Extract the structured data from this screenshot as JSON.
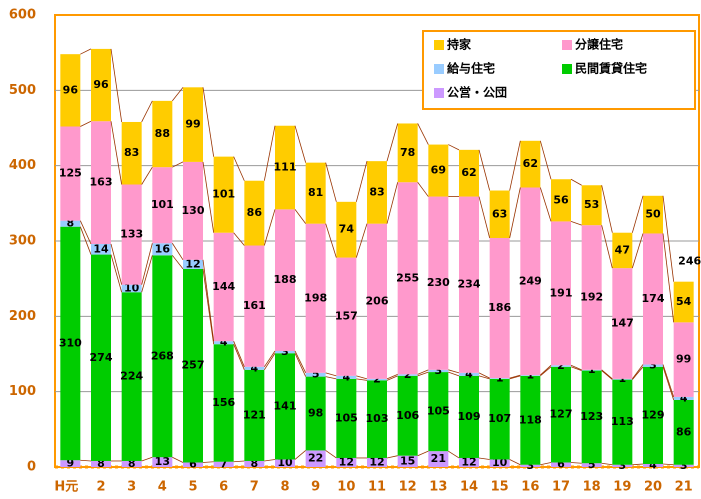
{
  "chart_data": {
    "type": "stacked-bar",
    "categories": [
      "H元",
      "2",
      "3",
      "4",
      "5",
      "6",
      "7",
      "8",
      "9",
      "10",
      "11",
      "12",
      "13",
      "14",
      "15",
      "16",
      "17",
      "18",
      "19",
      "20",
      "21"
    ],
    "series": [
      {
        "name": "公営・公団",
        "color": "#cc99ff",
        "values": [
          9,
          8,
          8,
          13,
          6,
          7,
          8,
          10,
          22,
          12,
          12,
          15,
          21,
          12,
          10,
          3,
          6,
          5,
          3,
          4,
          3
        ]
      },
      {
        "name": "民間賃貸住宅",
        "color": "#00cc00",
        "values": [
          310,
          274,
          224,
          268,
          257,
          156,
          121,
          141,
          98,
          105,
          103,
          106,
          105,
          109,
          107,
          118,
          127,
          123,
          113,
          129,
          86
        ]
      },
      {
        "name": "給与住宅",
        "color": "#99ccff",
        "values": [
          8,
          14,
          10,
          16,
          12,
          4,
          4,
          3,
          5,
          4,
          2,
          2,
          3,
          4,
          1,
          1,
          2,
          1,
          1,
          3,
          4
        ]
      },
      {
        "name": "分譲住宅",
        "color": "#ff99cc",
        "values": [
          125,
          163,
          133,
          101,
          130,
          144,
          161,
          188,
          198,
          157,
          206,
          255,
          230,
          234,
          186,
          249,
          191,
          192,
          147,
          174,
          99
        ]
      },
      {
        "name": "持家",
        "color": "#ffcc00",
        "values": [
          96,
          96,
          83,
          88,
          99,
          101,
          86,
          111,
          81,
          74,
          83,
          78,
          69,
          62,
          63,
          62,
          56,
          53,
          47,
          50,
          54
        ]
      }
    ],
    "legend_order": [
      4,
      3,
      2,
      1,
      0
    ],
    "total_label": {
      "index": 20,
      "value": 246
    },
    "ylim": [
      0,
      600
    ],
    "yticks": [
      0,
      100,
      200,
      300,
      400,
      500,
      600
    ],
    "grid": true
  }
}
